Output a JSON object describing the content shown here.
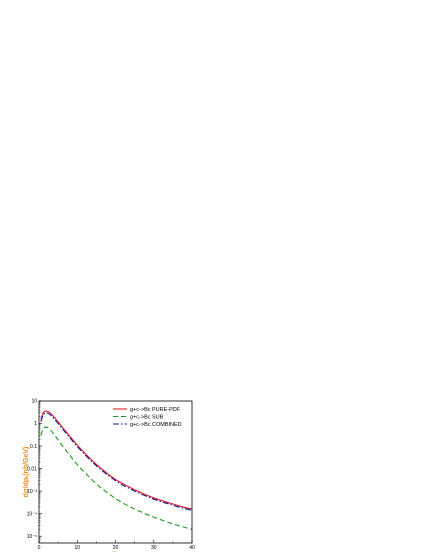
{
  "chart_data": {
    "type": "line",
    "xlabel": "pₜ",
    "ylabel": "dσ/dpₜ(nb/GeV)",
    "label_color": "#f08a1e",
    "xlim": [
      0,
      40
    ],
    "ylim": [
      5e-06,
      10
    ],
    "yscale": "log",
    "grid": false,
    "legend_position": "top-right",
    "x_ticks": [
      0,
      10,
      20,
      30,
      40
    ],
    "x_tick_labels": [
      "0",
      "10",
      "20",
      "30",
      "40"
    ],
    "y_ticks": [
      1e-05,
      0.0001,
      0.001,
      0.01,
      0.1,
      1,
      10
    ],
    "y_tick_labels": [
      "10⁻⁵",
      "10⁻⁴",
      "10⁻³",
      "0.01",
      "0.1",
      "1",
      "10"
    ],
    "series": [
      {
        "name": "g+c->Bc  PURE-PDF",
        "color": "#e0202a",
        "dash": "",
        "x": [
          0.5,
          1,
          1.5,
          2,
          2.5,
          3,
          4,
          5,
          6,
          8,
          10,
          12,
          14,
          16,
          18,
          20,
          22,
          25,
          28,
          30,
          33,
          36,
          38,
          40
        ],
        "y": [
          1.5,
          2.8,
          3.5,
          3.6,
          3.4,
          2.9,
          1.9,
          1.2,
          0.72,
          0.28,
          0.11,
          0.048,
          0.022,
          0.011,
          0.0058,
          0.0033,
          0.0021,
          0.00115,
          0.00068,
          0.0005,
          0.00034,
          0.00024,
          0.00019,
          0.00016
        ]
      },
      {
        "name": "g+c->Bc  SUB",
        "color": "#1a9a1a",
        "dash": "5,3",
        "x": [
          0.5,
          1,
          1.5,
          2,
          2.5,
          3,
          4,
          5,
          6,
          8,
          10,
          12,
          14,
          16,
          18,
          20,
          22,
          25,
          28,
          30,
          33,
          36,
          38,
          40
        ],
        "y": [
          0.3,
          0.55,
          0.68,
          0.7,
          0.62,
          0.52,
          0.32,
          0.19,
          0.11,
          0.04,
          0.015,
          0.0065,
          0.003,
          0.0015,
          0.00082,
          0.00047,
          0.00029,
          0.00016,
          9.5e-05,
          7e-05,
          4.6e-05,
          3.1e-05,
          2.5e-05,
          2e-05
        ]
      },
      {
        "name": "g+c->Bc  COMBINED",
        "color": "#1a1a9a",
        "dash": "6,2,1.5,2",
        "x": [
          0.5,
          1,
          1.5,
          2,
          2.5,
          3,
          4,
          5,
          6,
          8,
          10,
          12,
          14,
          16,
          18,
          20,
          22,
          25,
          28,
          30,
          33,
          36,
          38,
          40
        ],
        "y": [
          1.2,
          2.3,
          2.9,
          3.0,
          2.8,
          2.4,
          1.6,
          1.0,
          0.62,
          0.24,
          0.095,
          0.042,
          0.019,
          0.0095,
          0.0051,
          0.0029,
          0.0018,
          0.001,
          0.0006,
          0.00044,
          0.0003,
          0.00021,
          0.00017,
          0.00014
        ]
      }
    ]
  }
}
